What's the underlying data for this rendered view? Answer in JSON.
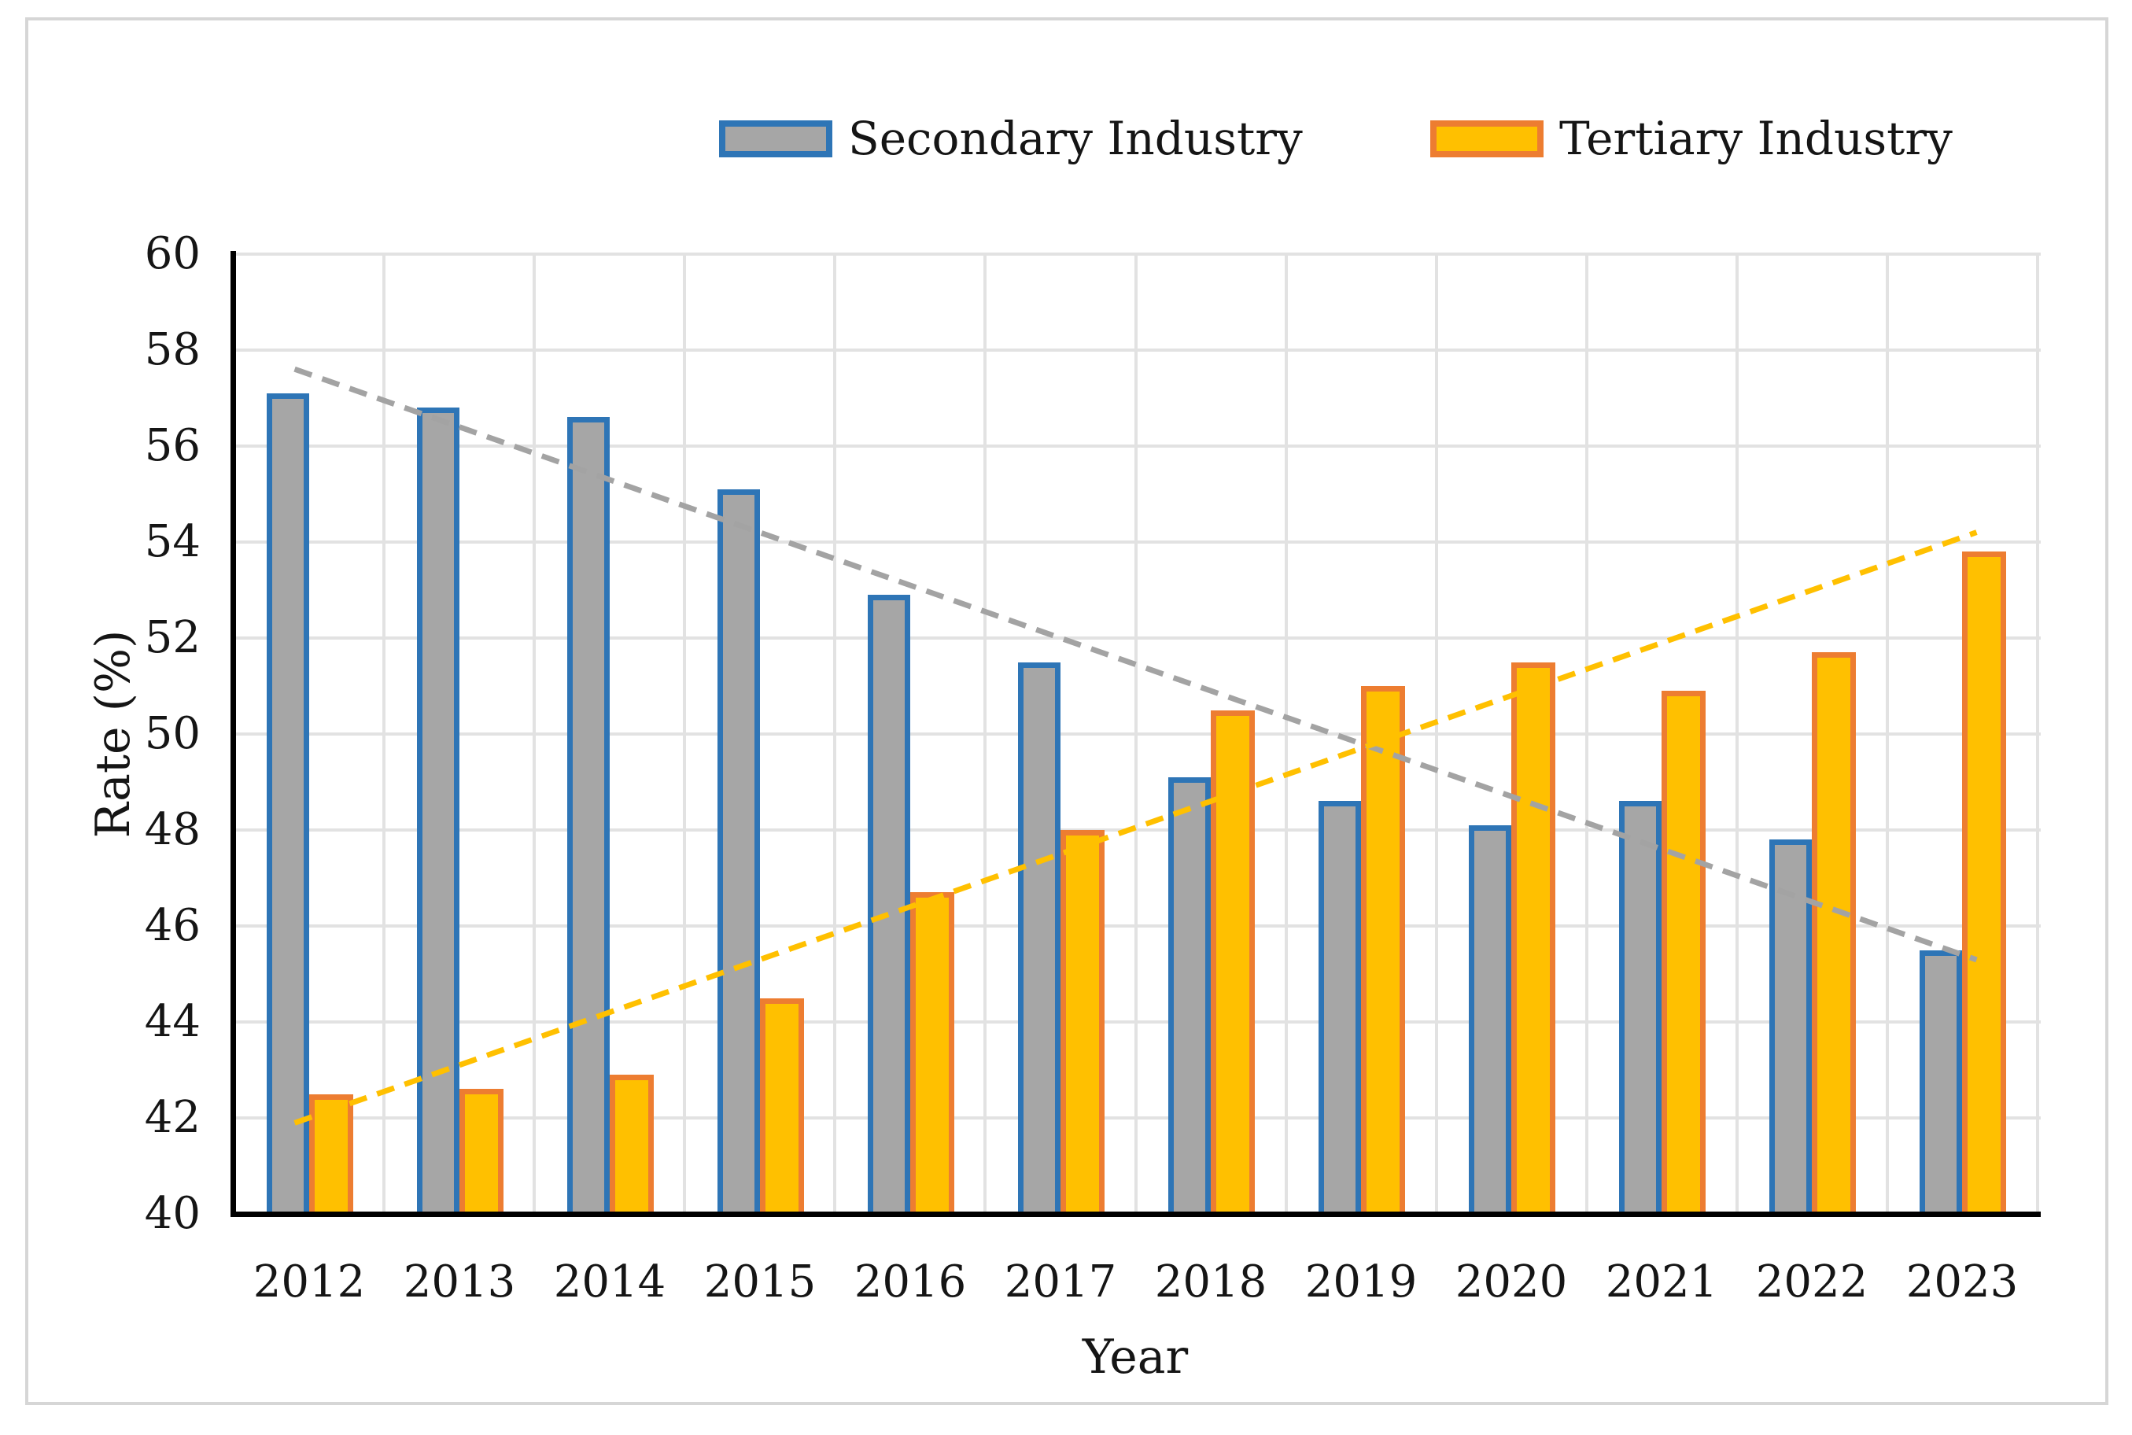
{
  "chart_data": {
    "type": "bar",
    "title": "",
    "xlabel": "Year",
    "ylabel": "Rate (%)",
    "categories": [
      "2012",
      "2013",
      "2014",
      "2015",
      "2016",
      "2017",
      "2018",
      "2019",
      "2020",
      "2021",
      "2022",
      "2023"
    ],
    "series": [
      {
        "name": "Secondary Industry",
        "fill": "#a6a6a6",
        "border": "#2e75b6",
        "values": [
          57.1,
          56.8,
          56.6,
          55.1,
          52.9,
          51.5,
          49.1,
          48.6,
          48.1,
          48.6,
          47.8,
          45.5
        ]
      },
      {
        "name": "Tertiary Industry",
        "fill": "#ffc000",
        "border": "#ed7d31",
        "values": [
          42.5,
          42.6,
          42.9,
          44.5,
          46.7,
          48.0,
          50.5,
          51.0,
          51.5,
          50.9,
          51.7,
          53.8
        ]
      }
    ],
    "trendlines": [
      {
        "series": "Secondary Industry",
        "style": "dashed",
        "color": "#a3a3a3",
        "start_value": 57.5,
        "end_value": 45.4
      },
      {
        "series": "Tertiary Industry",
        "style": "dashed",
        "color": "#ffc000",
        "start_value": 42.0,
        "end_value": 54.1
      }
    ],
    "ylim": [
      40,
      60
    ],
    "ytick_step": 2,
    "grid": true,
    "legend_position": "top"
  }
}
